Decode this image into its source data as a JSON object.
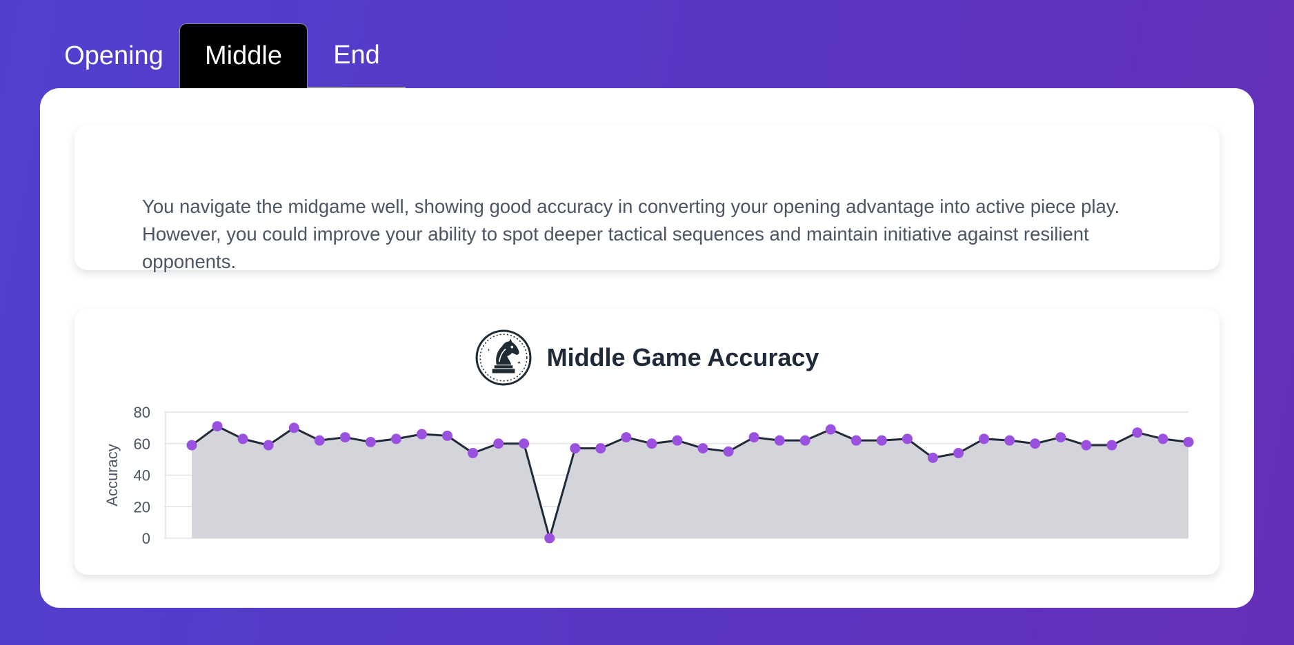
{
  "tabs": [
    {
      "label": "Opening",
      "active": false
    },
    {
      "label": "Middle",
      "active": true
    },
    {
      "label": "End",
      "active": false
    }
  ],
  "summary": {
    "text": "You navigate the midgame well, showing good accuracy in converting your opening advantage into active piece play. However, you could improve your ability to spot deeper tactical sequences and maintain initiative against resilient opponents."
  },
  "chart_header": {
    "title": "Middle Game Accuracy",
    "icon": "chess-knight-icon"
  },
  "colors": {
    "background_start": "#5140cf",
    "background_end": "#6530b8",
    "point": "#9b51e0",
    "line": "#1f2937",
    "fill": "#d4d5da"
  },
  "chart_data": {
    "type": "area",
    "title": "Middle Game Accuracy",
    "ylabel": "Accuracy",
    "xlabel": "",
    "ylim": [
      0,
      80
    ],
    "yticks": [
      0,
      20,
      40,
      60,
      80
    ],
    "grid": true,
    "x_labels_shown": false,
    "series": [
      {
        "values": [
          59,
          71,
          63,
          59,
          70,
          62,
          64,
          61,
          63,
          66,
          65,
          54,
          60,
          60,
          0,
          57,
          57,
          64,
          60,
          62,
          57,
          55,
          64,
          62,
          62,
          69,
          62,
          62,
          63,
          51,
          54,
          63,
          62,
          60,
          64,
          59,
          59,
          67,
          63,
          61
        ]
      }
    ]
  }
}
